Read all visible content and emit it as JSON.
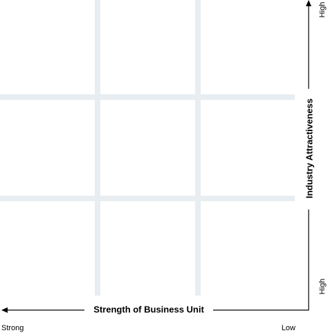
{
  "y_axis": {
    "label": "Industry Attractiveness",
    "top_label": "High",
    "bottom_label": "High"
  },
  "x_axis": {
    "label": "Strength of Business Unit",
    "left_label": "Strong",
    "right_label": "Low"
  }
}
